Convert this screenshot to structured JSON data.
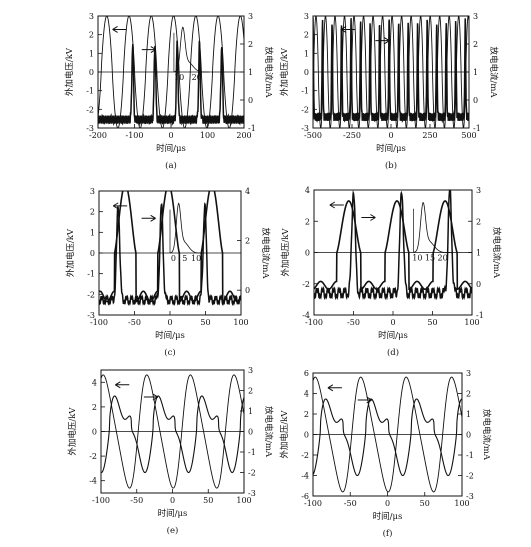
{
  "chart_data": [
    {
      "type": "line",
      "panel_label": "(a)",
      "xlabel": "时间/μs",
      "ylabel_left": "外加电压/kV",
      "ylabel_right": "放电电流/mA",
      "xlim": [
        -200,
        200
      ],
      "ylim_left": [
        -3,
        3
      ],
      "ylim_right": [
        -1,
        3
      ],
      "xticks": [
        "-200",
        "-100",
        "0",
        "100",
        "200"
      ],
      "yticks_left": [
        "-3",
        "-2",
        "-1",
        "0",
        "1",
        "2",
        "3"
      ],
      "yticks_right": [
        "-1",
        "0",
        "1",
        "2",
        "3"
      ],
      "voltage_waveform": {
        "axis": "left",
        "amplitude": 3.0,
        "period_us": 61,
        "phase_us": 7
      },
      "current_waveform": {
        "axis": "right",
        "baseline": -0.7,
        "peak": 2.0,
        "pulse_times_us": [
          -105,
          -44,
          17,
          78,
          139
        ],
        "trend": "noisy baseline with sharp single pulses"
      },
      "inset": {
        "x_ticks": [
          "10",
          "20"
        ],
        "description": "zoomed current pulse"
      }
    },
    {
      "type": "line",
      "panel_label": "(b)",
      "xlabel": "时间/μs",
      "ylabel_left": "外加电压/kV",
      "ylabel_right": "放电电流/mA",
      "xlim": [
        -500,
        500
      ],
      "ylim_left": [
        -3,
        3
      ],
      "ylim_right": [
        -1,
        3
      ],
      "xticks": [
        "-500",
        "-250",
        "0",
        "250",
        "500"
      ],
      "yticks_left": [
        "-3",
        "-2",
        "-1",
        "0",
        "1",
        "2",
        "3"
      ],
      "yticks_right": [
        "-1",
        "0",
        "1",
        "2",
        "3"
      ],
      "voltage_waveform": {
        "axis": "left",
        "amplitude": 3.0,
        "period_us": 61,
        "phase_us": 7
      },
      "current_waveform": {
        "axis": "right",
        "baseline": -0.6,
        "peak": 2.8,
        "pulse_every_period": true
      }
    },
    {
      "type": "line",
      "panel_label": "(c)",
      "xlabel": "时间/μs",
      "ylabel_left": "外加电压/kV",
      "ylabel_right": "放电电流/mA",
      "xlim": [
        -100,
        100
      ],
      "ylim_left": [
        -3,
        3
      ],
      "ylim_right": [
        -1,
        4
      ],
      "xticks": [
        "-100",
        "-50",
        "0",
        "50",
        "100"
      ],
      "yticks_left": [
        "-3",
        "-2",
        "-1",
        "0",
        "1",
        "2",
        "3"
      ],
      "yticks_right": [
        "0",
        "2",
        "4"
      ],
      "voltage_waveform": {
        "axis": "left",
        "amplitude": 3.3,
        "period_us": 61,
        "phase_us": -2
      },
      "current_waveform": {
        "axis": "right",
        "baseline": -0.4,
        "peak": 3.4,
        "pulse_times_us": [
          -73,
          -12,
          49
        ]
      },
      "inset": {
        "x_ticks": [
          "0",
          "5",
          "10"
        ]
      }
    },
    {
      "type": "line",
      "panel_label": "(d)",
      "xlabel": "时间/μs",
      "ylabel_left": "外加电压/kV",
      "ylabel_right": "放电电流/mA",
      "xlim": [
        -100,
        100
      ],
      "ylim_left": [
        -4,
        4
      ],
      "ylim_right": [
        -1,
        3
      ],
      "xticks": [
        "-100",
        "-50",
        "0",
        "50",
        "100"
      ],
      "yticks_left": [
        "-4",
        "-2",
        "0",
        "2",
        "4"
      ],
      "yticks_right": [
        "-1",
        "0",
        "1",
        "2",
        "3"
      ],
      "voltage_waveform": {
        "axis": "left",
        "amplitude": 3.3,
        "period_us": 61,
        "phase_us": 5
      },
      "current_waveform": {
        "axis": "right",
        "baseline": -0.3,
        "peak": 3.0,
        "pulse_times_us": [
          -50,
          11,
          72
        ]
      },
      "inset": {
        "x_ticks": [
          "10",
          "15",
          "20"
        ]
      }
    },
    {
      "type": "line",
      "panel_label": "(e)",
      "xlabel": "时间/μs",
      "ylabel_left": "外加电压/kV",
      "ylabel_right": "放电电流/mA",
      "xlim": [
        -100,
        100
      ],
      "ylim_left": [
        -5,
        5
      ],
      "ylim_right": [
        -3,
        3
      ],
      "xticks": [
        "-100",
        "-50",
        "0",
        "50",
        "100"
      ],
      "yticks_left": [
        "-4",
        "-2",
        "0",
        "2",
        "4"
      ],
      "yticks_right": [
        "-3",
        "-2",
        "-1",
        "0",
        "1",
        "2",
        "3"
      ],
      "voltage_waveform": {
        "axis": "left",
        "amplitude": 4.6,
        "period_us": 61,
        "phase_us": 13
      },
      "current_waveform": {
        "axis": "right",
        "amplitude": 2.8,
        "period_us": 61,
        "phase_us": -27,
        "shape": "broad asymmetric oscillation"
      }
    },
    {
      "type": "line",
      "panel_label": "(f)",
      "xlabel": "时间/μs",
      "ylabel_left": "外加电压/kV",
      "ylabel_right": "放电电流/mA",
      "xlim": [
        -100,
        100
      ],
      "ylim_left": [
        -6,
        6
      ],
      "ylim_right": [
        -3,
        3
      ],
      "xticks": [
        "-100",
        "-50",
        "0",
        "50",
        "100"
      ],
      "yticks_left": [
        "-6",
        "-4",
        "-2",
        "0",
        "2",
        "4",
        "6"
      ],
      "yticks_right": [
        "-3",
        "-2",
        "-1",
        "0",
        "1",
        "2",
        "3"
      ],
      "voltage_waveform": {
        "axis": "left",
        "amplitude": 5.6,
        "period_us": 61,
        "phase_us": 13
      },
      "current_waveform": {
        "axis": "right",
        "amplitude": 2.8,
        "period_us": 61,
        "phase_us": -29,
        "shape": "broad asymmetric oscillation"
      }
    }
  ],
  "colors": {
    "line": "#111111",
    "background": "#ffffff"
  }
}
